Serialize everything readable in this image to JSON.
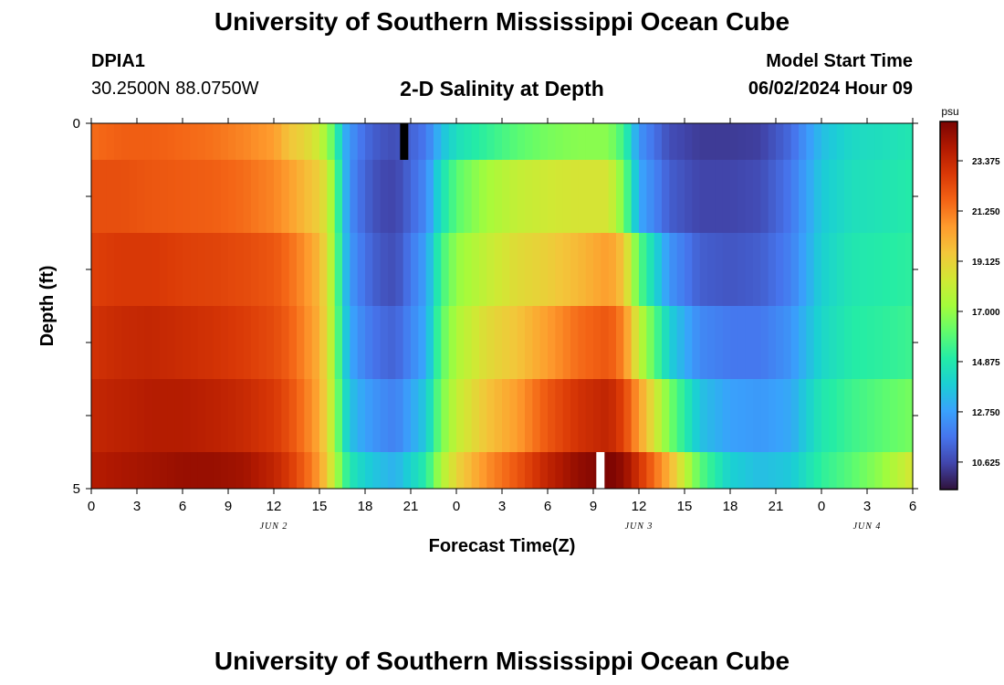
{
  "header": {
    "title": "University of Southern Mississippi Ocean Cube",
    "station_id": "DPIA1",
    "coordinates": "30.2500N  88.0750W",
    "subtitle": "2-D Salinity at Depth",
    "start_label": "Model Start Time",
    "start_value": "06/02/2024 Hour 09"
  },
  "footer": {
    "title": "University of Southern Mississippi Ocean Cube"
  },
  "colorbar": {
    "unit": "psu",
    "ticks": [
      "23.375",
      "21.250",
      "19.125",
      "17.000",
      "14.875",
      "12.750",
      "10.625"
    ]
  },
  "colors": {
    "scale": [
      "#30123b",
      "#4145ab",
      "#4675ed",
      "#39a2fc",
      "#1bcfd4",
      "#24eca6",
      "#61fc6c",
      "#a4fc3b",
      "#d1e834",
      "#f3c63a",
      "#fe9b2d",
      "#f36315",
      "#d93806",
      "#b11901",
      "#7a0402"
    ],
    "missing_black": "#000000",
    "missing_white": "#ffffff"
  },
  "chart_data": {
    "type": "heatmap",
    "xlabel": "Forecast Time(Z)",
    "ylabel": "Depth (ft)",
    "x_tick_labels": [
      "0",
      "3",
      "6",
      "9",
      "12",
      "15",
      "18",
      "21",
      "0",
      "3",
      "6",
      "9",
      "12",
      "15",
      "18",
      "21",
      "0",
      "3",
      "6"
    ],
    "date_labels": [
      {
        "text": "JUN 2",
        "hour": 12
      },
      {
        "text": "JUN 3",
        "hour": 36
      },
      {
        "text": "JUN 4",
        "hour": 51
      }
    ],
    "y_tick_labels": [
      "0",
      "5"
    ],
    "xlim": [
      0,
      54
    ],
    "ylim": [
      0,
      5
    ],
    "color_range": [
      9.5,
      25.0
    ],
    "depth_levels": [
      0,
      1,
      2,
      3,
      4,
      5
    ],
    "hours": [
      0,
      2,
      4,
      6,
      8,
      10,
      12,
      13,
      14,
      15,
      15.5,
      16,
      16.5,
      17,
      18,
      19,
      20,
      22,
      23,
      24,
      26,
      28,
      30,
      32,
      34,
      35,
      36,
      38,
      40,
      42,
      44,
      46,
      48,
      50,
      52,
      54
    ],
    "salinity_layers": [
      [
        21.5,
        21.8,
        21.8,
        21.6,
        21.4,
        21.0,
        20.5,
        19.5,
        19.0,
        18.2,
        17.0,
        15.8,
        13.5,
        12.5,
        11.5,
        11.0,
        10.8,
        11.8,
        13.5,
        14.5,
        15.3,
        16.0,
        16.5,
        16.8,
        16.8,
        15.5,
        12.5,
        10.8,
        10.4,
        10.4,
        10.5,
        11.5,
        13.5,
        14.3,
        14.5,
        14.8
      ],
      [
        22.2,
        22.2,
        22.0,
        21.9,
        21.8,
        21.5,
        21.0,
        20.5,
        19.8,
        19.2,
        18.3,
        16.5,
        14.0,
        12.3,
        11.3,
        10.7,
        10.6,
        12.2,
        14.5,
        16.0,
        17.3,
        18.0,
        18.3,
        18.5,
        18.5,
        16.5,
        13.0,
        11.2,
        10.6,
        10.6,
        10.8,
        11.8,
        13.8,
        14.5,
        14.7,
        15.0
      ],
      [
        22.6,
        22.8,
        22.8,
        22.6,
        22.5,
        22.3,
        22.0,
        21.5,
        20.8,
        19.8,
        18.6,
        16.8,
        14.2,
        12.6,
        11.6,
        11.0,
        10.8,
        12.8,
        15.5,
        17.0,
        18.0,
        18.8,
        19.2,
        19.8,
        20.5,
        19.5,
        16.0,
        12.5,
        11.2,
        11.0,
        11.2,
        12.0,
        14.0,
        14.8,
        15.0,
        15.2
      ],
      [
        23.0,
        23.3,
        23.4,
        23.2,
        23.0,
        22.7,
        22.3,
        21.8,
        21.0,
        20.0,
        18.7,
        17.0,
        14.5,
        13.0,
        12.0,
        11.5,
        11.3,
        13.0,
        16.0,
        17.5,
        18.8,
        19.5,
        20.5,
        21.5,
        22.0,
        21.0,
        18.0,
        14.0,
        12.2,
        11.8,
        11.8,
        12.5,
        14.2,
        15.0,
        15.2,
        15.5
      ],
      [
        23.4,
        23.6,
        23.8,
        23.8,
        23.6,
        23.3,
        22.8,
        22.2,
        21.3,
        20.2,
        18.8,
        17.3,
        15.0,
        13.6,
        12.8,
        12.3,
        12.0,
        13.8,
        16.5,
        18.0,
        19.5,
        20.5,
        22.0,
        23.0,
        23.5,
        22.5,
        20.5,
        16.5,
        13.6,
        12.8,
        12.6,
        13.0,
        14.8,
        15.5,
        16.0,
        16.5
      ],
      [
        23.8,
        24.0,
        24.2,
        24.4,
        24.4,
        24.2,
        23.5,
        22.8,
        21.8,
        20.5,
        19.2,
        17.8,
        16.0,
        14.8,
        14.0,
        13.5,
        13.2,
        15.0,
        17.5,
        19.0,
        20.8,
        22.0,
        23.5,
        24.5,
        25.0,
        24.5,
        23.0,
        20.0,
        16.0,
        14.0,
        13.5,
        13.8,
        15.2,
        16.0,
        17.0,
        18.5
      ]
    ],
    "missing_cells": [
      {
        "hour": 20.6,
        "layer": 0,
        "color": "black"
      },
      {
        "hour": 33.5,
        "layer": 5,
        "color": "white"
      }
    ]
  }
}
